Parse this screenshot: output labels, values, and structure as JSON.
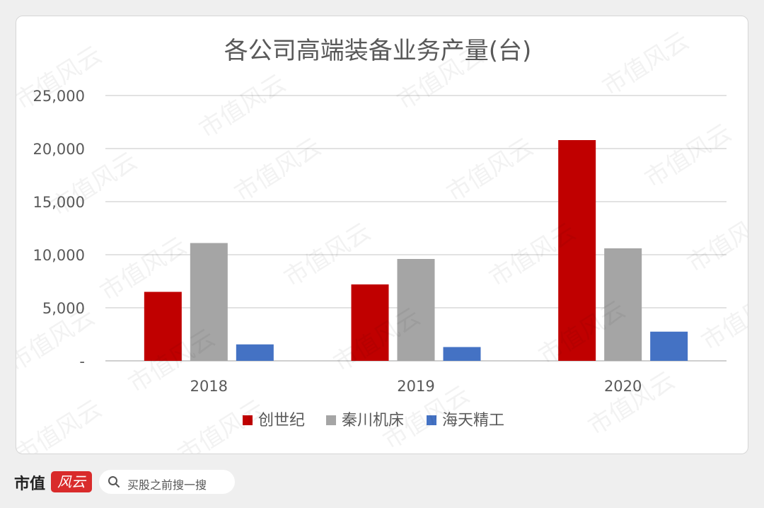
{
  "chart_data": {
    "type": "bar",
    "title": "各公司高端装备业务产量(台)",
    "categories": [
      "2018",
      "2019",
      "2020"
    ],
    "series": [
      {
        "name": "创世纪",
        "color": "#c00000",
        "values": [
          6500,
          7200,
          20800
        ]
      },
      {
        "name": "秦川机床",
        "color": "#a5a5a5",
        "values": [
          11100,
          9600,
          10600
        ]
      },
      {
        "name": "海天精工",
        "color": "#4472c4",
        "values": [
          1550,
          1300,
          2750
        ]
      }
    ],
    "yticks": [
      "-",
      "5,000",
      "10,000",
      "15,000",
      "20,000",
      "25,000"
    ],
    "ylim": [
      0,
      25000
    ],
    "grid": true,
    "legend": "bottom"
  },
  "footer": {
    "brand": "市值",
    "badge": "风云",
    "search_text": "买股之前搜一搜"
  },
  "watermark": "市值风云"
}
